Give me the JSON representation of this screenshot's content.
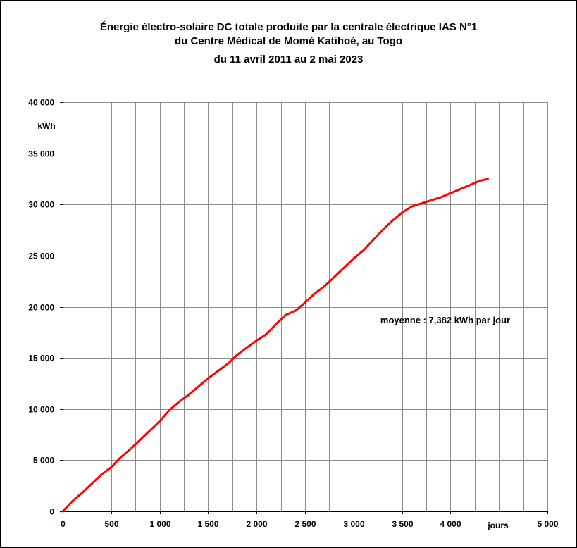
{
  "chart_data": {
    "type": "line",
    "title_lines": [
      "Énergie électro-solaire  DC totale produite par la centrale électrique  IAS N°1",
      "du Centre Médical  de Momé  Katihoé,  au Togo",
      "du 11 avril  2011 au 2 mai  2023"
    ],
    "ylabel": "kWh",
    "xlabel": "jours",
    "xlim": [
      0,
      5000
    ],
    "ylim": [
      0,
      40000
    ],
    "x_tick_values": [
      0,
      500,
      1000,
      1500,
      2000,
      2500,
      3000,
      3500,
      4000,
      5000
    ],
    "x_tick_labels": [
      "0",
      "500",
      "1 000",
      "1 500",
      "2 000",
      "2 500",
      "3 000",
      "3 500",
      "4 000",
      "5 000"
    ],
    "y_tick_values": [
      0,
      5000,
      10000,
      15000,
      20000,
      25000,
      30000,
      35000,
      40000
    ],
    "y_tick_labels": [
      "0",
      "5 000",
      "10 000",
      "15 000",
      "20 000",
      "25 000",
      "30 000",
      "35 000",
      "40 000"
    ],
    "grid": true,
    "grid_step_x": 250,
    "grid_step_y": 5000,
    "annotation": "moyenne :  7,382 kWh par jour",
    "series": [
      {
        "color": "#ff0000",
        "x": [
          0,
          100,
          200,
          300,
          400,
          500,
          600,
          700,
          800,
          900,
          1000,
          1100,
          1200,
          1300,
          1400,
          1500,
          1600,
          1700,
          1800,
          1900,
          2000,
          2100,
          2200,
          2300,
          2400,
          2500,
          2600,
          2700,
          2800,
          2900,
          3000,
          3100,
          3200,
          3300,
          3400,
          3500,
          3600,
          3700,
          3800,
          3900,
          4000,
          4100,
          4200,
          4300,
          4385
        ],
        "y": [
          0,
          1000,
          1800,
          2700,
          3600,
          4300,
          5300,
          6100,
          7000,
          7900,
          8800,
          9900,
          10700,
          11400,
          12200,
          13000,
          13700,
          14400,
          15300,
          16000,
          16700,
          17300,
          18300,
          19200,
          19600,
          20400,
          21300,
          22000,
          22900,
          23800,
          24700,
          25500,
          26500,
          27500,
          28400,
          29200,
          29800,
          30100,
          30400,
          30700,
          31100,
          31500,
          31900,
          32300,
          32500
        ]
      }
    ]
  }
}
